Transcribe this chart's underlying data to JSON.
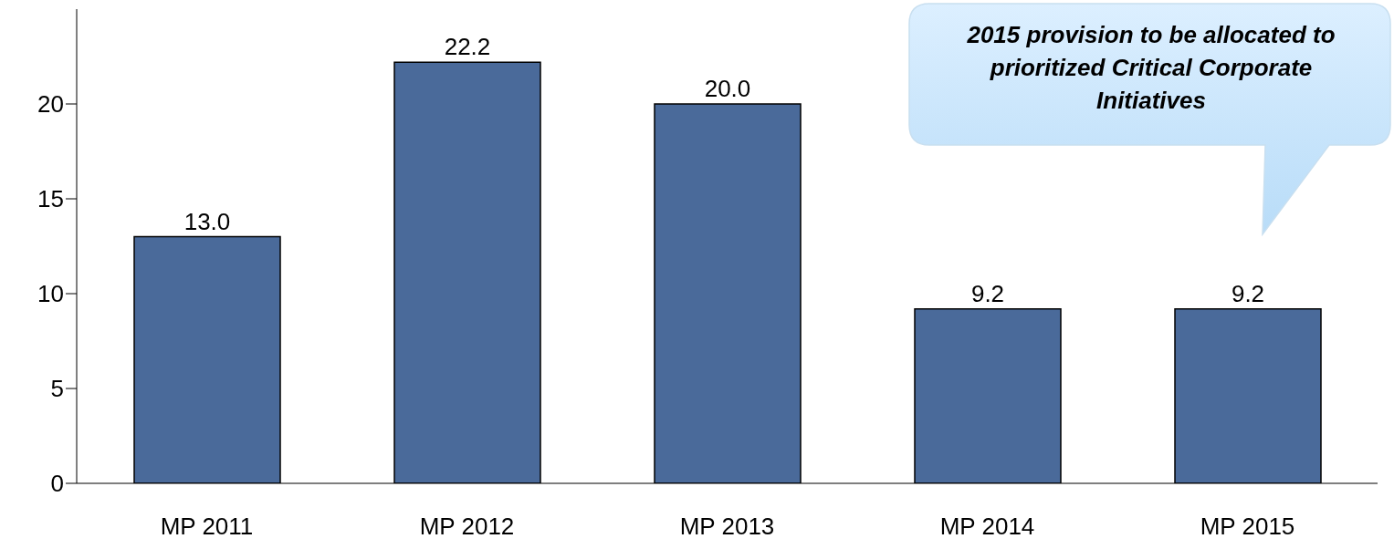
{
  "chart_data": {
    "type": "bar",
    "categories": [
      "MP 2011",
      "MP 2012",
      "MP 2013",
      "MP 2014",
      "MP 2015"
    ],
    "values": [
      13.0,
      22.2,
      20.0,
      9.2,
      9.2
    ],
    "color": "#4a6a9a",
    "ylim": [
      0,
      25
    ],
    "yticks": [
      0,
      5,
      10,
      15,
      20
    ],
    "value_labels": [
      "13.0",
      "22.2",
      "20.0",
      "9.2",
      "9.2"
    ],
    "annotations": [
      "2015 provision to be allocated to prioritized Critical Corporate Initiatives"
    ]
  }
}
